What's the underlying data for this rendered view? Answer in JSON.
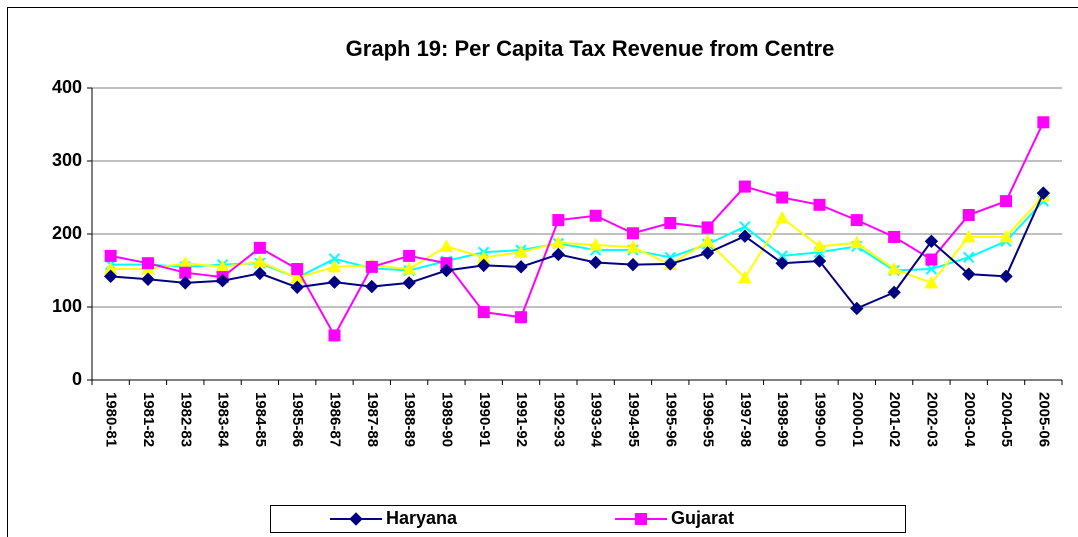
{
  "chart_data": {
    "type": "line",
    "title": "Graph 19: Per Capita Tax Revenue from Centre",
    "categories": [
      "1980-81",
      "1981-82",
      "1982-83",
      "1983-84",
      "1984-85",
      "1985-86",
      "1986-87",
      "1987-88",
      "1988-89",
      "1989-90",
      "1990-91",
      "1991-92",
      "1992-93",
      "1993-94",
      "1994-95",
      "1995-96",
      "1996-95",
      "1997-98",
      "1998-99",
      "1999-00",
      "2000-01",
      "2001-02",
      "2002-03",
      "2003-04",
      "2004-05",
      "2005-06"
    ],
    "series": [
      {
        "name": "Haryana",
        "color": "#000080",
        "marker": "diamond",
        "values": [
          142,
          138,
          133,
          136,
          146,
          127,
          134,
          128,
          133,
          150,
          157,
          155,
          172,
          161,
          158,
          159,
          174,
          197,
          160,
          163,
          98,
          120,
          190,
          145,
          142,
          256
        ]
      },
      {
        "name": "Gujarat",
        "color": "#ff00ff",
        "marker": "square",
        "values": [
          170,
          160,
          147,
          141,
          181,
          152,
          61,
          155,
          170,
          160,
          93,
          86,
          219,
          225,
          201,
          215,
          209,
          265,
          250,
          240,
          219,
          196,
          165,
          226,
          245,
          353
        ]
      },
      {
        "color": "#ffff00",
        "marker": "triangle",
        "values": [
          152,
          152,
          160,
          155,
          162,
          140,
          155,
          157,
          152,
          183,
          168,
          175,
          188,
          185,
          182,
          158,
          190,
          140,
          222,
          183,
          188,
          152,
          133,
          196,
          196,
          252
        ]
      },
      {
        "color": "#00ffff",
        "marker": "x",
        "values": [
          158,
          158,
          155,
          158,
          160,
          140,
          166,
          153,
          150,
          163,
          175,
          178,
          187,
          178,
          178,
          168,
          186,
          210,
          170,
          175,
          183,
          150,
          152,
          168,
          190,
          245
        ]
      }
    ],
    "ylim": [
      0,
      400
    ],
    "yticks": [
      0,
      100,
      200,
      300,
      400
    ],
    "grid": true
  }
}
